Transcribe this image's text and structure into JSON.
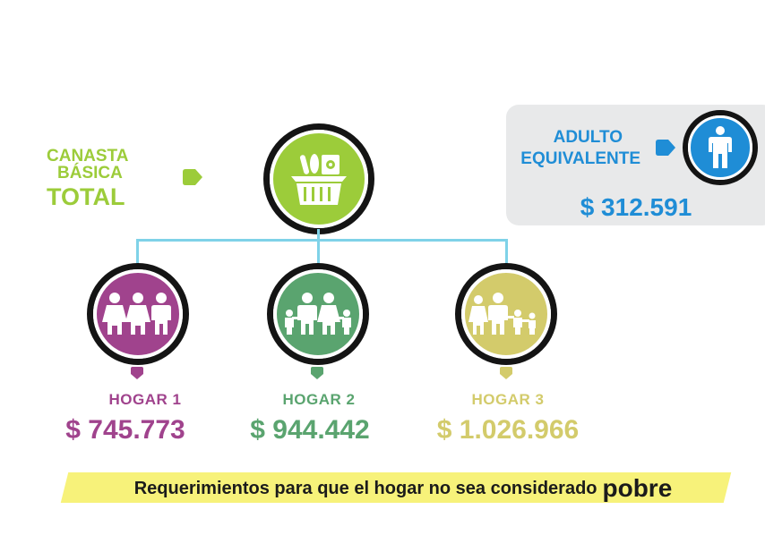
{
  "canasta": {
    "line1": "CANASTA",
    "line2": "BÁSICA",
    "line3": "TOTAL"
  },
  "adulto": {
    "line1": "ADULTO",
    "line2": "EQUIVALENTE",
    "value": "$ 312.591"
  },
  "hogares": [
    {
      "label": "HOGAR 1",
      "value": "$ 745.773",
      "color": "#a0438d"
    },
    {
      "label": "HOGAR 2",
      "value": "$ 944.442",
      "color": "#5aa46f"
    },
    {
      "label": "HOGAR 3",
      "value": "$ 1.026.966",
      "color": "#d3cb6b"
    }
  ],
  "banner": {
    "text": "Requerimientos para que el hogar no sea considerado",
    "emphasis": "pobre"
  },
  "colors": {
    "canasta": "#9ccc3a",
    "adulto": "#1f8dd6",
    "connector": "#7fd2e8"
  },
  "icons": {
    "canasta": "basket-icon",
    "adulto": "person-icon",
    "hogar1": "family-adults-icon",
    "hogar2": "family-with-children-icon",
    "hogar3": "family-large-icon"
  }
}
